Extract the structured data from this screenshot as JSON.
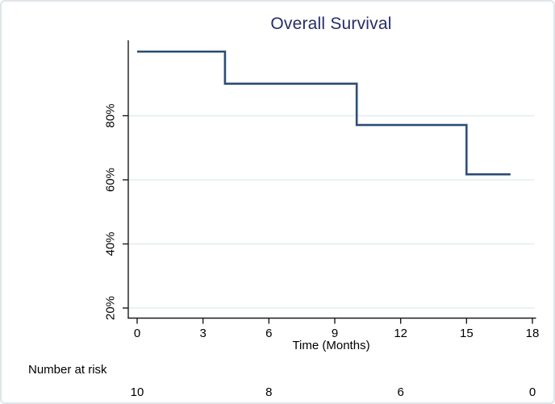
{
  "chart_data": {
    "type": "line",
    "subtype": "kaplan-meier-step-function",
    "title": "Overall Survival",
    "xlabel": "Time (Months)",
    "ylabel": "",
    "x_ticks": [
      "0",
      "3",
      "6",
      "9",
      "12",
      "15",
      "18"
    ],
    "x_tick_values": [
      0,
      3,
      6,
      9,
      12,
      15,
      18
    ],
    "y_ticks": [
      "20%",
      "40%",
      "60%",
      "80%"
    ],
    "y_tick_values": [
      20,
      40,
      60,
      80
    ],
    "xlim": [
      0,
      18
    ],
    "ylim_percent": [
      17,
      103
    ],
    "grid": true,
    "legend_position": "none",
    "series": [
      {
        "name": "Overall Survival",
        "points": [
          [
            0,
            100
          ],
          [
            4,
            100
          ],
          [
            4,
            90
          ],
          [
            10,
            90
          ],
          [
            10,
            77.1
          ],
          [
            15,
            77.1
          ],
          [
            15,
            61.7
          ],
          [
            17,
            61.7
          ]
        ],
        "survival_drops": [
          {
            "time": 4,
            "from_percent": 100,
            "to_percent": 90
          },
          {
            "time": 10,
            "from_percent": 90,
            "to_percent": 77.1
          },
          {
            "time": 15,
            "from_percent": 77.1,
            "to_percent": 61.7
          }
        ],
        "end_time": 17
      }
    ],
    "colors": {
      "title": "#252c66",
      "line": "#2b4a71",
      "line_halo": "#b7c3d6",
      "grid": "#e3edef",
      "axis": "#1a1a1a"
    }
  },
  "risk_table": {
    "label": "Number at risk",
    "times": [
      0,
      6,
      12,
      18
    ],
    "values": [
      "10",
      "8",
      "6",
      "0"
    ]
  }
}
